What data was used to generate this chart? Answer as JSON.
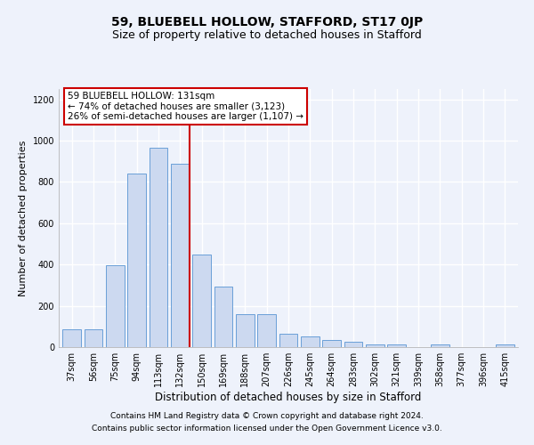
{
  "title": "59, BLUEBELL HOLLOW, STAFFORD, ST17 0JP",
  "subtitle": "Size of property relative to detached houses in Stafford",
  "xlabel": "Distribution of detached houses by size in Stafford",
  "ylabel": "Number of detached properties",
  "categories": [
    "37sqm",
    "56sqm",
    "75sqm",
    "94sqm",
    "113sqm",
    "132sqm",
    "150sqm",
    "169sqm",
    "188sqm",
    "207sqm",
    "226sqm",
    "245sqm",
    "264sqm",
    "283sqm",
    "302sqm",
    "321sqm",
    "339sqm",
    "358sqm",
    "377sqm",
    "396sqm",
    "415sqm"
  ],
  "values": [
    85,
    85,
    395,
    840,
    965,
    890,
    450,
    295,
    160,
    160,
    65,
    50,
    35,
    25,
    15,
    15,
    0,
    15,
    0,
    0,
    15
  ],
  "bar_face_color": "#ccd9f0",
  "bar_edge_color": "#6a9fd8",
  "highlight_index": 5,
  "highlight_line_color": "#cc0000",
  "annotation_text": "59 BLUEBELL HOLLOW: 131sqm\n← 74% of detached houses are smaller (3,123)\n26% of semi-detached houses are larger (1,107) →",
  "annotation_box_color": "#ffffff",
  "annotation_box_edge_color": "#cc0000",
  "ylim": [
    0,
    1250
  ],
  "yticks": [
    0,
    200,
    400,
    600,
    800,
    1000,
    1200
  ],
  "bg_color": "#eef2fb",
  "plot_bg_color": "#eef2fb",
  "grid_color": "#ffffff",
  "footer_line1": "Contains HM Land Registry data © Crown copyright and database right 2024.",
  "footer_line2": "Contains public sector information licensed under the Open Government Licence v3.0.",
  "title_fontsize": 10,
  "subtitle_fontsize": 9,
  "xlabel_fontsize": 8.5,
  "ylabel_fontsize": 8,
  "tick_fontsize": 7,
  "annot_fontsize": 7.5,
  "footer_fontsize": 6.5
}
